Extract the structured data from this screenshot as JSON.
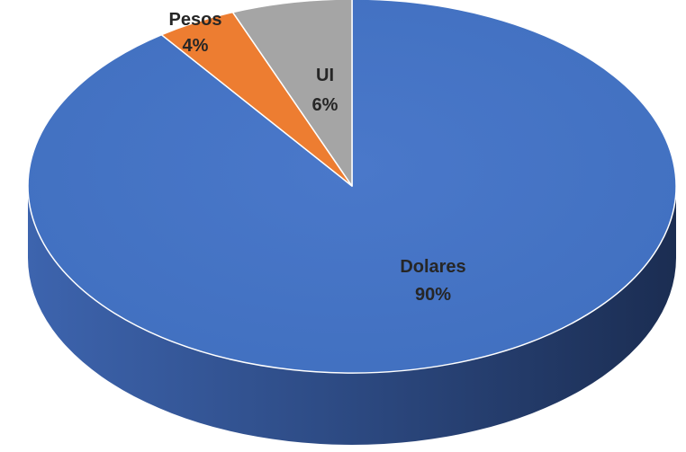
{
  "chart_data": {
    "type": "pie",
    "style": "3d",
    "title": "",
    "slices": [
      {
        "label": "Dolares",
        "value": 90,
        "value_label": "90%",
        "color": "#4472C4"
      },
      {
        "label": "Pesos",
        "value": 4,
        "value_label": "4%",
        "color": "#ED7D31"
      },
      {
        "label": "UI",
        "value": 6,
        "value_label": "6%",
        "color": "#A5A5A5"
      }
    ],
    "legend": "none",
    "data_labels": "category-and-percent"
  }
}
